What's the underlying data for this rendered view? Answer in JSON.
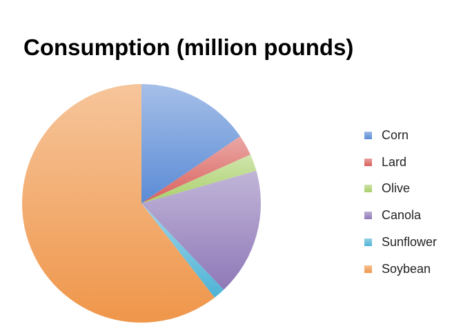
{
  "chart_data": {
    "type": "pie",
    "title": "Consumption (million pounds)",
    "categories": [
      "Corn",
      "Lard",
      "Olive",
      "Canola",
      "Sunflower",
      "Soybean"
    ],
    "values": [
      15.5,
      2.8,
      2.3,
      17.3,
      1.6,
      60.5
    ],
    "colors": [
      "#5b8bd6",
      "#d9605c",
      "#a9cf6a",
      "#8f79b8",
      "#4fb3d6",
      "#ef964a"
    ],
    "legend": "right",
    "start_angle": "12 o'clock, clockwise"
  }
}
